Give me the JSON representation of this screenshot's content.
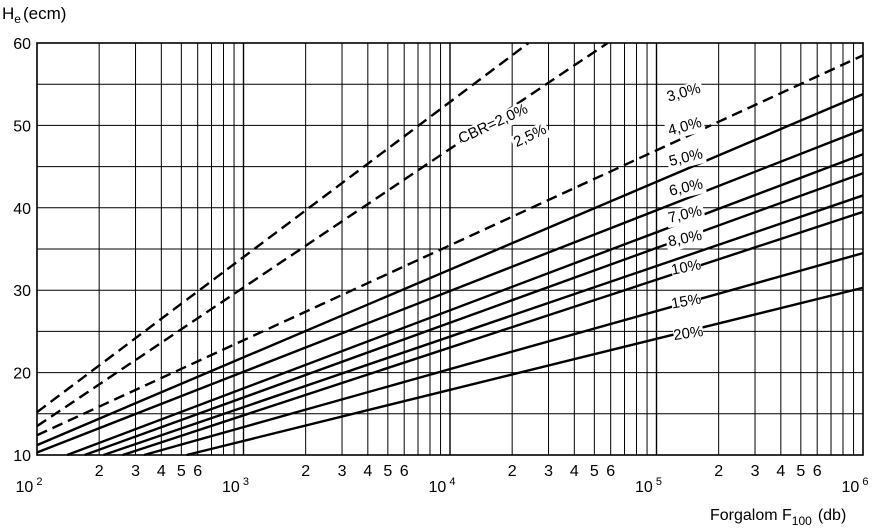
{
  "chart_data": {
    "type": "line",
    "title": "",
    "ylabel": "H",
    "ylabel_sub": "e",
    "ylabel_unit": "(ecm)",
    "xlabel": "Forgalom F",
    "xlabel_sub": "100",
    "xlabel_unit": "(db)",
    "x_scale": "log",
    "xlim": [
      100,
      1000000
    ],
    "ylim": [
      10,
      60
    ],
    "y_ticks": [
      10,
      20,
      30,
      40,
      50,
      60
    ],
    "decade_labels": [
      {
        "base": "10",
        "exp": "2"
      },
      {
        "base": "10",
        "exp": "3"
      },
      {
        "base": "10",
        "exp": "4"
      },
      {
        "base": "10",
        "exp": "5"
      },
      {
        "base": "10",
        "exp": "6"
      }
    ],
    "minor_tick_labels": [
      "2",
      "3",
      "4",
      "5",
      "6"
    ],
    "grid": true,
    "series": [
      {
        "name": "CBR=2,0%",
        "style": "dashed",
        "x": [
          100,
          24000
        ],
        "y": [
          15.2,
          60
        ],
        "label_rotation": -25
      },
      {
        "name": "2,5%",
        "style": "dashed",
        "x": [
          100,
          58000
        ],
        "y": [
          13.5,
          60
        ],
        "label_rotation": -25
      },
      {
        "name": "3,0%",
        "style": "dashed",
        "x": [
          100,
          1000000
        ],
        "y": [
          12.4,
          58.5
        ],
        "label_rotation": -16
      },
      {
        "name": "4,0%",
        "style": "solid",
        "x": [
          100,
          1000000
        ],
        "y": [
          11.2,
          53.8
        ],
        "label_rotation": -15
      },
      {
        "name": "5,0%",
        "style": "solid",
        "x": [
          100,
          1000000
        ],
        "y": [
          10.3,
          49.5
        ],
        "label_rotation": -14
      },
      {
        "name": "6,0%",
        "style": "solid",
        "x": [
          140,
          1000000
        ],
        "y": [
          10,
          46.5
        ],
        "label_rotation": -13
      },
      {
        "name": "7,0%",
        "style": "solid",
        "x": [
          170,
          1000000
        ],
        "y": [
          10,
          44.2
        ],
        "label_rotation": -13
      },
      {
        "name": "8,0%",
        "style": "solid",
        "x": [
          210,
          1000000
        ],
        "y": [
          10,
          41.5
        ],
        "label_rotation": -12
      },
      {
        "name": "10%",
        "style": "solid",
        "x": [
          260,
          1000000
        ],
        "y": [
          10,
          39.5
        ],
        "label_rotation": -11
      },
      {
        "name": "15%",
        "style": "solid",
        "x": [
          330,
          1000000
        ],
        "y": [
          10,
          34.5
        ],
        "label_rotation": -10
      },
      {
        "name": "20%",
        "style": "solid",
        "x": [
          530,
          1000000
        ],
        "y": [
          10,
          30.3
        ],
        "label_rotation": -8
      }
    ]
  }
}
